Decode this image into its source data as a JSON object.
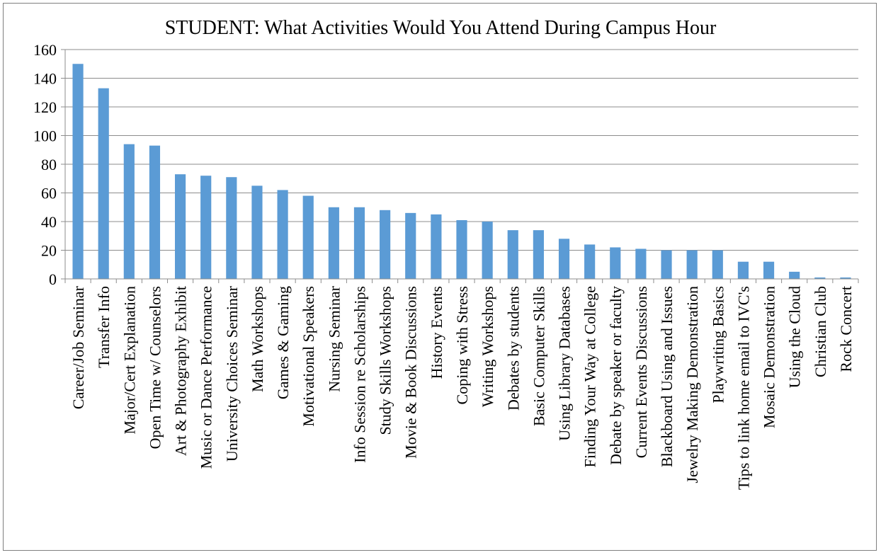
{
  "chart_data": {
    "type": "bar",
    "title": "STUDENT: What Activities Would You Attend During Campus Hour",
    "xlabel": "",
    "ylabel": "",
    "ylim": [
      0,
      160
    ],
    "yticks": [
      0,
      20,
      40,
      60,
      80,
      100,
      120,
      140,
      160
    ],
    "grid": true,
    "bar_color": "#5b9bd5",
    "categories": [
      "Career/Job Seminar",
      "Transfer Info",
      "Major/Cert Explanation",
      "Open Time w/ Counselors",
      "Art & Photography Exhibit",
      "Music or Dance Performance",
      "University Choices Seminar",
      "Math Workshops",
      "Games & Gaming",
      "Motivational Speakers",
      "Nursing Seminar",
      "Info Session re Scholarships",
      "Study Skills Workshops",
      "Movie & Book Discussions",
      "History Events",
      "Coping with Stress",
      "Writing Workshops",
      "Debates by students",
      "Basic Computer Skills",
      "Using Library Databases",
      "Finding Your Way at College",
      "Debate by speaker or faculty",
      "Current Events Discussions",
      "Blackboard Using and Issues",
      "Jewelry Making Demonstration",
      "Playwriting Basics",
      "Tips to link home email to IVC's",
      "Mosaic Demonstration",
      "Using the Cloud",
      "Christian Club",
      "Rock Concert"
    ],
    "values": [
      150,
      133,
      94,
      93,
      73,
      72,
      71,
      65,
      62,
      58,
      50,
      50,
      48,
      46,
      45,
      41,
      40,
      34,
      34,
      28,
      24,
      22,
      21,
      20,
      20,
      20,
      12,
      12,
      5,
      1,
      1
    ]
  }
}
